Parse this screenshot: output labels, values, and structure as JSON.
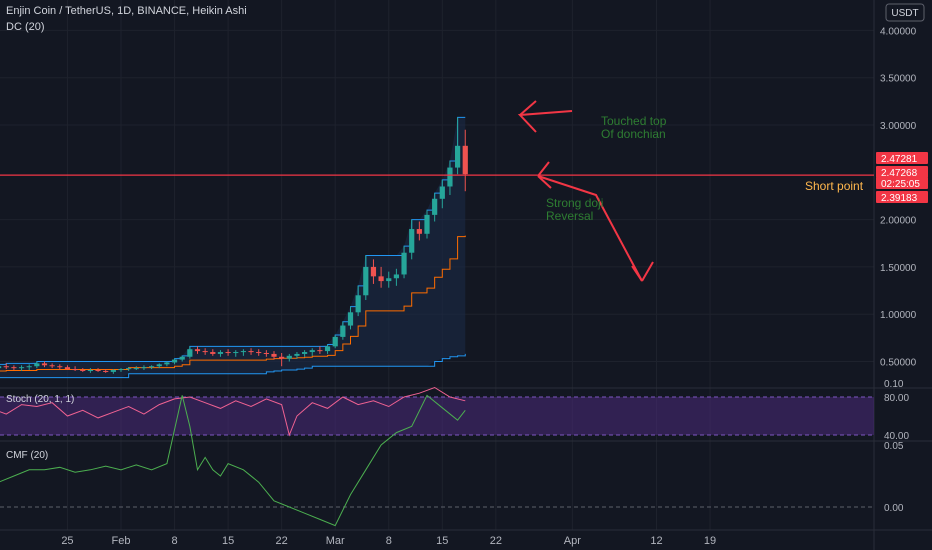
{
  "colors": {
    "background": "#131722",
    "grid": "#1e222d",
    "axis_text": "#b2b5be",
    "separator": "#2a2e39",
    "candle_up": "#26a69a",
    "candle_down": "#ef5350",
    "dc_upper": "#2196f3",
    "dc_lower": "#2196f3",
    "dc_basis": "#ff6d00",
    "dc_fill": "#1b2a46",
    "stoch_line": "#f06292",
    "stoch_band": "#4a2a7a",
    "cmf_line": "#4caf50",
    "annotation_red": "#f23645",
    "annotation_green": "#2e7d32",
    "short_text": "#ffb74d"
  },
  "header": {
    "symbol_line": "Enjin Coin / TetherUS, 1D, BINANCE, Heikin Ashi",
    "indicator": "DC (20)",
    "currency": "USDT"
  },
  "price_axis": {
    "ticks": [
      "4.00000",
      "3.50000",
      "3.00000",
      "2.00000",
      "1.50000",
      "1.00000",
      "0.50000"
    ],
    "tick_values": [
      4.0,
      3.5,
      3.0,
      2.0,
      1.5,
      1.0,
      0.5
    ],
    "badges": [
      {
        "label": "2.47281",
        "value": 2.47281
      },
      {
        "label": "2.47268",
        "value": 2.47268
      },
      {
        "label": "02:25:05",
        "value": null
      },
      {
        "label": "2.39183",
        "value": 2.39183
      }
    ]
  },
  "stoch_panel": {
    "label": "Stoch (20, 1, 1)",
    "ticks": [
      "80.00",
      "40.00"
    ],
    "tick_values": [
      80,
      40
    ]
  },
  "cmf_panel": {
    "label": "CMF (20)",
    "ticks": [
      "0.10",
      "0.05",
      "0.00"
    ],
    "tick_values": [
      0.1,
      0.05,
      0.0
    ]
  },
  "time_axis": [
    "25",
    "Feb",
    "8",
    "15",
    "22",
    "Mar",
    "8",
    "15",
    "22",
    "Apr",
    "12",
    "19"
  ],
  "time_axis_days": [
    -7,
    0,
    7,
    14,
    21,
    28,
    35,
    42,
    49,
    59,
    70,
    77
  ],
  "annotations": {
    "top_note_line1": "Touched top",
    "top_note_line2": "Of donchian",
    "doji_line1": "Strong doji",
    "doji_line2": "Reversal",
    "short_point": "Short point",
    "horizontal_level": 2.47
  },
  "chart_data": [
    {
      "type": "candlestick",
      "name": "ENJ/USDT Heikin Ashi",
      "x_unit": "days from Feb 1",
      "ylim": [
        0.3,
        4.1
      ],
      "grid": true,
      "candles": [
        [
          -19,
          0.38,
          0.45,
          0.33,
          0.42
        ],
        [
          -18,
          0.42,
          0.47,
          0.38,
          0.44
        ],
        [
          -17,
          0.44,
          0.46,
          0.4,
          0.43
        ],
        [
          -16,
          0.43,
          0.47,
          0.4,
          0.45
        ],
        [
          -15,
          0.45,
          0.48,
          0.42,
          0.44
        ],
        [
          -14,
          0.44,
          0.46,
          0.41,
          0.43
        ],
        [
          -13,
          0.43,
          0.46,
          0.4,
          0.44
        ],
        [
          -12,
          0.44,
          0.47,
          0.41,
          0.45
        ],
        [
          -11,
          0.45,
          0.5,
          0.43,
          0.48
        ],
        [
          -10,
          0.48,
          0.5,
          0.44,
          0.46
        ],
        [
          -9,
          0.46,
          0.48,
          0.43,
          0.45
        ],
        [
          -8,
          0.45,
          0.47,
          0.42,
          0.44
        ],
        [
          -7,
          0.44,
          0.46,
          0.41,
          0.42
        ],
        [
          -6,
          0.42,
          0.45,
          0.4,
          0.41
        ],
        [
          -5,
          0.41,
          0.43,
          0.39,
          0.4
        ],
        [
          -4,
          0.4,
          0.43,
          0.38,
          0.41
        ],
        [
          -3,
          0.41,
          0.43,
          0.39,
          0.4
        ],
        [
          -2,
          0.4,
          0.42,
          0.38,
          0.39
        ],
        [
          -1,
          0.39,
          0.42,
          0.37,
          0.41
        ],
        [
          0,
          0.41,
          0.43,
          0.39,
          0.42
        ],
        [
          1,
          0.42,
          0.44,
          0.4,
          0.43
        ],
        [
          2,
          0.43,
          0.45,
          0.41,
          0.43
        ],
        [
          3,
          0.43,
          0.46,
          0.41,
          0.44
        ],
        [
          4,
          0.44,
          0.46,
          0.42,
          0.45
        ],
        [
          5,
          0.45,
          0.48,
          0.43,
          0.47
        ],
        [
          6,
          0.47,
          0.5,
          0.45,
          0.49
        ],
        [
          7,
          0.49,
          0.53,
          0.47,
          0.52
        ],
        [
          8,
          0.52,
          0.56,
          0.5,
          0.55
        ],
        [
          9,
          0.55,
          0.66,
          0.53,
          0.63
        ],
        [
          10,
          0.63,
          0.66,
          0.58,
          0.61
        ],
        [
          11,
          0.61,
          0.64,
          0.57,
          0.6
        ],
        [
          12,
          0.6,
          0.63,
          0.56,
          0.58
        ],
        [
          13,
          0.58,
          0.62,
          0.55,
          0.6
        ],
        [
          14,
          0.6,
          0.63,
          0.56,
          0.59
        ],
        [
          15,
          0.59,
          0.62,
          0.55,
          0.6
        ],
        [
          16,
          0.6,
          0.63,
          0.56,
          0.61
        ],
        [
          17,
          0.61,
          0.64,
          0.57,
          0.6
        ],
        [
          18,
          0.6,
          0.63,
          0.56,
          0.59
        ],
        [
          19,
          0.59,
          0.62,
          0.55,
          0.58
        ],
        [
          20,
          0.58,
          0.61,
          0.52,
          0.55
        ],
        [
          21,
          0.55,
          0.59,
          0.45,
          0.53
        ],
        [
          22,
          0.53,
          0.58,
          0.5,
          0.56
        ],
        [
          23,
          0.56,
          0.6,
          0.53,
          0.58
        ],
        [
          24,
          0.58,
          0.62,
          0.55,
          0.6
        ],
        [
          25,
          0.6,
          0.64,
          0.56,
          0.62
        ],
        [
          26,
          0.62,
          0.66,
          0.58,
          0.61
        ],
        [
          27,
          0.61,
          0.68,
          0.58,
          0.66
        ],
        [
          28,
          0.66,
          0.78,
          0.64,
          0.76
        ],
        [
          29,
          0.76,
          0.92,
          0.73,
          0.88
        ],
        [
          30,
          0.88,
          1.08,
          0.84,
          1.02
        ],
        [
          31,
          1.02,
          1.3,
          0.98,
          1.2
        ],
        [
          32,
          1.2,
          1.62,
          1.15,
          1.5
        ],
        [
          33,
          1.5,
          1.58,
          1.32,
          1.4
        ],
        [
          34,
          1.4,
          1.5,
          1.28,
          1.35
        ],
        [
          35,
          1.35,
          1.45,
          1.28,
          1.38
        ],
        [
          36,
          1.38,
          1.48,
          1.3,
          1.42
        ],
        [
          37,
          1.42,
          1.72,
          1.38,
          1.65
        ],
        [
          38,
          1.65,
          2.0,
          1.58,
          1.9
        ],
        [
          39,
          1.9,
          1.98,
          1.78,
          1.85
        ],
        [
          40,
          1.85,
          2.1,
          1.8,
          2.05
        ],
        [
          41,
          2.05,
          2.28,
          1.98,
          2.22
        ],
        [
          42,
          2.22,
          2.42,
          2.12,
          2.35
        ],
        [
          43,
          2.35,
          2.62,
          2.26,
          2.55
        ],
        [
          44,
          2.55,
          3.08,
          2.48,
          2.78
        ],
        [
          45,
          2.78,
          2.95,
          2.3,
          2.48
        ]
      ]
    },
    {
      "type": "line",
      "name": "Stoch (20, 1, 1)",
      "x_unit": "days from Feb 1",
      "ylim": [
        20,
        100
      ],
      "x": [
        -19,
        -17,
        -15,
        -13,
        -11,
        -9,
        -7,
        -5,
        -3,
        -1,
        1,
        3,
        5,
        7,
        9,
        11,
        13,
        15,
        17,
        19,
        21,
        22,
        23,
        25,
        27,
        29,
        31,
        33,
        35,
        37,
        39,
        41,
        43,
        45
      ],
      "values": [
        55,
        68,
        62,
        72,
        70,
        74,
        60,
        66,
        58,
        64,
        70,
        62,
        72,
        78,
        80,
        74,
        68,
        76,
        70,
        78,
        72,
        40,
        60,
        74,
        68,
        80,
        72,
        76,
        70,
        80,
        84,
        90,
        80,
        76
      ]
    },
    {
      "type": "line",
      "name": "CMF (20)",
      "x_unit": "days from Feb 1",
      "ylim": [
        -0.03,
        0.11
      ],
      "x": [
        -19,
        -18,
        -16,
        -14,
        -12,
        -10,
        -8,
        -6,
        -4,
        -2,
        0,
        2,
        4,
        6,
        8,
        9,
        10,
        11,
        12,
        13,
        14,
        16,
        18,
        20,
        22,
        24,
        26,
        28,
        30,
        32,
        34,
        36,
        38,
        40,
        42,
        44,
        45
      ],
      "values": [
        -0.03,
        0.0,
        0.02,
        0.025,
        0.03,
        0.03,
        0.032,
        0.028,
        0.03,
        0.033,
        0.03,
        0.034,
        0.03,
        0.035,
        0.09,
        0.065,
        0.03,
        0.04,
        0.03,
        0.025,
        0.035,
        0.03,
        0.02,
        0.005,
        0.0,
        -0.005,
        -0.01,
        -0.015,
        0.01,
        0.03,
        0.05,
        0.06,
        0.065,
        0.09,
        0.08,
        0.07,
        0.078
      ]
    }
  ]
}
